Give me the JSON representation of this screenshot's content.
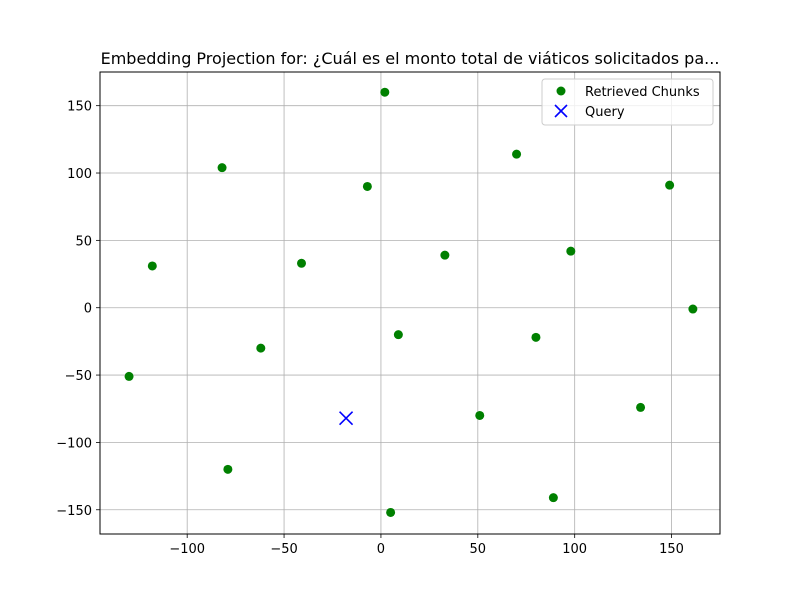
{
  "chart_data": {
    "type": "scatter",
    "title": "Embedding Projection for: ¿Cuál es el monto total de viáticos solicitados pa...",
    "xlabel": "",
    "ylabel": "",
    "xlim": [
      -145,
      175
    ],
    "ylim": [
      -168,
      175
    ],
    "xticks": [
      -100,
      -50,
      0,
      50,
      100,
      150
    ],
    "xtick_labels": [
      "−100",
      "−50",
      "0",
      "50",
      "100",
      "150"
    ],
    "yticks": [
      -150,
      -100,
      -50,
      0,
      50,
      100,
      150
    ],
    "ytick_labels": [
      "−150",
      "−100",
      "−50",
      "0",
      "50",
      "100",
      "150"
    ],
    "grid": true,
    "legend_position": "top-right",
    "series": [
      {
        "name": "Retrieved Chunks",
        "marker": "circle",
        "color": "#008000",
        "points": [
          {
            "x": 2,
            "y": 160
          },
          {
            "x": -82,
            "y": 104
          },
          {
            "x": 70,
            "y": 114
          },
          {
            "x": -7,
            "y": 90
          },
          {
            "x": 149,
            "y": 91
          },
          {
            "x": -118,
            "y": 31
          },
          {
            "x": -41,
            "y": 33
          },
          {
            "x": 33,
            "y": 39
          },
          {
            "x": 98,
            "y": 42
          },
          {
            "x": 161,
            "y": -1
          },
          {
            "x": 9,
            "y": -20
          },
          {
            "x": 80,
            "y": -22
          },
          {
            "x": -62,
            "y": -30
          },
          {
            "x": -130,
            "y": -51
          },
          {
            "x": 51,
            "y": -80
          },
          {
            "x": 134,
            "y": -74
          },
          {
            "x": -79,
            "y": -120
          },
          {
            "x": 89,
            "y": -141
          },
          {
            "x": 5,
            "y": -152
          }
        ]
      },
      {
        "name": "Query",
        "marker": "x",
        "color": "#0000ff",
        "points": [
          {
            "x": -18,
            "y": -82
          }
        ]
      }
    ]
  }
}
